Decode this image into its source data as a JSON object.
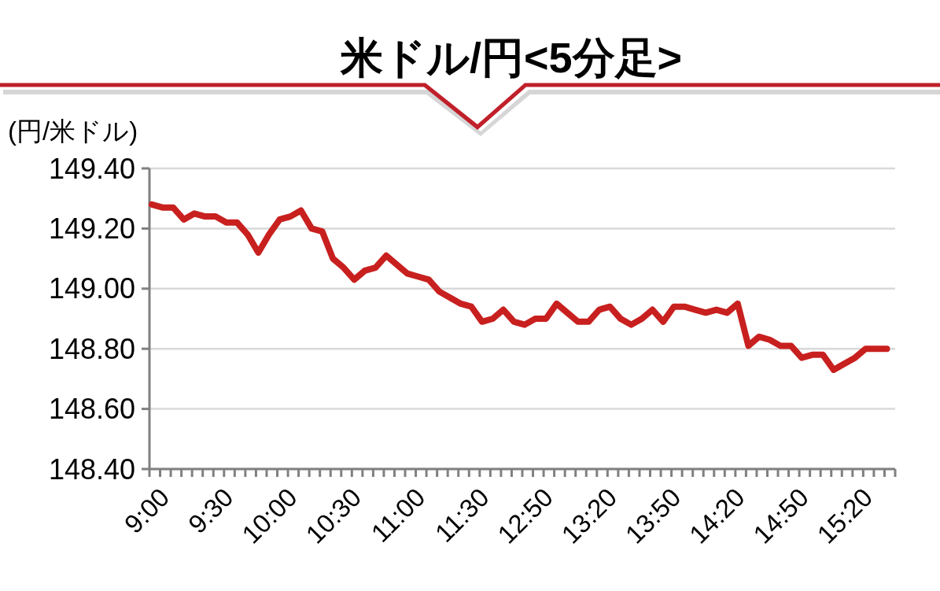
{
  "chart_data": {
    "type": "line",
    "title": "米ドル/円<5分足>",
    "ylabel": "(円/米ドル)",
    "categories": [
      "9:00",
      null,
      null,
      null,
      null,
      null,
      "9:30",
      null,
      null,
      null,
      null,
      null,
      "10:00",
      null,
      null,
      null,
      null,
      null,
      "10:30",
      null,
      null,
      null,
      null,
      null,
      "11:00",
      null,
      null,
      null,
      null,
      null,
      "11:30",
      null,
      null,
      null,
      null,
      null,
      "12:50",
      null,
      null,
      null,
      null,
      null,
      "13:20",
      null,
      null,
      null,
      null,
      null,
      "13:50",
      null,
      null,
      null,
      null,
      null,
      "14:20",
      null,
      null,
      null,
      null,
      null,
      "14:50",
      null,
      null,
      null,
      null,
      null,
      "15:20",
      null,
      null,
      null
    ],
    "series": [
      {
        "color": "#c8201f",
        "values": [
          149.28,
          149.27,
          149.27,
          149.23,
          149.25,
          149.24,
          149.24,
          149.22,
          149.22,
          149.18,
          149.12,
          149.18,
          149.23,
          149.24,
          149.26,
          149.2,
          149.19,
          149.1,
          149.07,
          149.03,
          149.06,
          149.07,
          149.11,
          149.08,
          149.05,
          149.04,
          149.03,
          148.99,
          148.97,
          148.95,
          148.94,
          148.89,
          148.9,
          148.93,
          148.89,
          148.88,
          148.9,
          148.9,
          148.95,
          148.92,
          148.89,
          148.89,
          148.93,
          148.94,
          148.9,
          148.88,
          148.9,
          148.93,
          148.89,
          148.94,
          148.94,
          148.93,
          148.92,
          148.93,
          148.92,
          148.95,
          148.81,
          148.84,
          148.83,
          148.81,
          148.81,
          148.77,
          148.78,
          148.78,
          148.73,
          148.75,
          148.77,
          148.8,
          148.8,
          148.8
        ]
      }
    ],
    "ylim": [
      148.4,
      149.4
    ],
    "yticks": [
      {
        "value": 148.4,
        "label": "148.40"
      },
      {
        "value": 148.6,
        "label": "148.60"
      },
      {
        "value": 148.8,
        "label": "148.80"
      },
      {
        "value": 149.0,
        "label": "149.00"
      },
      {
        "value": 149.2,
        "label": "149.20"
      },
      {
        "value": 149.4,
        "label": "149.40"
      }
    ],
    "grid": "y",
    "marker": "none",
    "line_style": "solid"
  }
}
